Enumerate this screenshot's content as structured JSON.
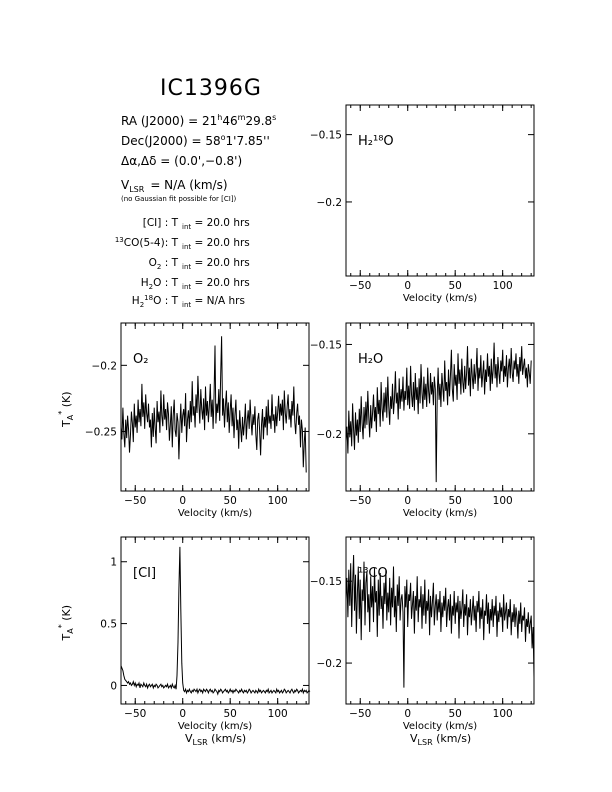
{
  "header": {
    "source": "IC1396G",
    "ra_label": "RA (J2000)  =  21",
    "ra_h": "h",
    "ra_mid": "46",
    "ra_m": "m",
    "ra_sec": "29.8",
    "ra_s": "s",
    "dec_label": "Dec(J2000)  =  58",
    "dec_deg": "o",
    "dec_rest": "1'7.85''",
    "offset_text": "Δα,Δδ = (0.0',−0.8')",
    "vlsr_pre": "V",
    "vlsr_sub": "LSR",
    "vlsr_post": "= N/A  (km/s)",
    "vlsr_note": "(no Gaussian fit possible for [CI])",
    "tint": [
      {
        "pre": "",
        "sup": "",
        "name": "[CI] : T",
        "sub": "int",
        "post": "= 20.0 hrs"
      },
      {
        "pre": "",
        "sup": "13",
        "name": "CO(5-4): T",
        "sub": "int",
        "post": "= 20.0 hrs"
      },
      {
        "pre": "",
        "sup": "",
        "name": "O",
        "sub2": "2",
        "name2": " : T",
        "sub": "int",
        "post": "= 20.0 hrs"
      },
      {
        "pre": "",
        "sup": "",
        "name": "H",
        "sub2": "2",
        "name2": "O : T",
        "sub": "int",
        "post": "= 20.0 hrs"
      },
      {
        "pre": "",
        "sup": "",
        "name": "H",
        "sub2": "2",
        "sup2": "18",
        "name2": "O : T",
        "sub": "int",
        "post": "= N/A  hrs"
      }
    ]
  },
  "axis_labels": {
    "velocity": "Velocity (km/s)",
    "vlsr": "V",
    "vlsr_sub": "LSR",
    "vlsr_unit": "(km/s)",
    "ta": "T",
    "ta_sub": "A",
    "ta_sup": "*",
    "ta_unit": "(K)"
  },
  "chart_data": [
    {
      "id": "h218o",
      "type": "line",
      "label": "H₂¹⁸O",
      "xlim": [
        -65,
        133
      ],
      "ylim": [
        -0.255,
        -0.128
      ],
      "xticks": [
        -50,
        0,
        50,
        100
      ],
      "yticks": [
        -0.15,
        -0.2
      ],
      "ytick_labels": [
        "−0.15",
        "−0.2"
      ],
      "series": []
    },
    {
      "id": "o2",
      "type": "line",
      "label": "O₂",
      "xlim": [
        -65,
        133
      ],
      "ylim": [
        -0.295,
        -0.168
      ],
      "xticks": [
        -50,
        0,
        50,
        100
      ],
      "yticks": [
        -0.2,
        -0.25
      ],
      "ytick_labels": [
        "−0.2",
        "−0.25"
      ],
      "series": [
        {
          "x_start": -65,
          "x_step": 1.0,
          "y": [
            -0.247,
            -0.256,
            -0.232,
            -0.251,
            -0.262,
            -0.241,
            -0.255,
            -0.238,
            -0.249,
            -0.266,
            -0.252,
            -0.235,
            -0.244,
            -0.258,
            -0.229,
            -0.247,
            -0.238,
            -0.251,
            -0.226,
            -0.243,
            -0.233,
            -0.246,
            -0.214,
            -0.239,
            -0.228,
            -0.248,
            -0.222,
            -0.236,
            -0.243,
            -0.229,
            -0.247,
            -0.241,
            -0.262,
            -0.236,
            -0.254,
            -0.232,
            -0.248,
            -0.259,
            -0.227,
            -0.243,
            -0.235,
            -0.251,
            -0.219,
            -0.238,
            -0.246,
            -0.222,
            -0.241,
            -0.233,
            -0.249,
            -0.228,
            -0.237,
            -0.257,
            -0.244,
            -0.231,
            -0.262,
            -0.238,
            -0.226,
            -0.249,
            -0.254,
            -0.236,
            -0.243,
            -0.271,
            -0.246,
            -0.229,
            -0.251,
            -0.238,
            -0.233,
            -0.246,
            -0.221,
            -0.258,
            -0.241,
            -0.234,
            -0.248,
            -0.227,
            -0.243,
            -0.212,
            -0.238,
            -0.231,
            -0.247,
            -0.222,
            -0.236,
            -0.208,
            -0.229,
            -0.244,
            -0.218,
            -0.233,
            -0.241,
            -0.225,
            -0.249,
            -0.216,
            -0.238,
            -0.227,
            -0.243,
            -0.231,
            -0.214,
            -0.239,
            -0.226,
            -0.248,
            -0.221,
            -0.185,
            -0.244,
            -0.229,
            -0.236,
            -0.218,
            -0.242,
            -0.207,
            -0.178,
            -0.238,
            -0.225,
            -0.247,
            -0.231,
            -0.219,
            -0.243,
            -0.228,
            -0.251,
            -0.234,
            -0.222,
            -0.246,
            -0.232,
            -0.255,
            -0.238,
            -0.226,
            -0.249,
            -0.241,
            -0.263,
            -0.234,
            -0.247,
            -0.258,
            -0.239,
            -0.253,
            -0.244,
            -0.229,
            -0.256,
            -0.241,
            -0.234,
            -0.248,
            -0.226,
            -0.242,
            -0.253,
            -0.237,
            -0.245,
            -0.231,
            -0.252,
            -0.264,
            -0.241,
            -0.236,
            -0.249,
            -0.268,
            -0.245,
            -0.233,
            -0.256,
            -0.239,
            -0.247,
            -0.231,
            -0.253,
            -0.226,
            -0.244,
            -0.238,
            -0.248,
            -0.222,
            -0.242,
            -0.237,
            -0.251,
            -0.231,
            -0.246,
            -0.235,
            -0.223,
            -0.242,
            -0.229,
            -0.238,
            -0.226,
            -0.249,
            -0.219,
            -0.236,
            -0.244,
            -0.231,
            -0.222,
            -0.241,
            -0.233,
            -0.247,
            -0.227,
            -0.238,
            -0.216,
            -0.243,
            -0.252,
            -0.236,
            -0.229,
            -0.245,
            -0.238,
            -0.262,
            -0.241,
            -0.249,
            -0.277,
            -0.258,
            -0.247,
            -0.281
          ]
        }
      ]
    },
    {
      "id": "h2o",
      "type": "line",
      "label": "H₂O",
      "xlim": [
        -65,
        133
      ],
      "ylim": [
        -0.232,
        -0.138
      ],
      "xticks": [
        -50,
        0,
        50,
        100
      ],
      "yticks": [
        -0.15,
        -0.2
      ],
      "ytick_labels": [
        "−0.15",
        "−0.2"
      ],
      "series": [
        {
          "x_start": -65,
          "x_step": 1.0,
          "y": [
            -0.204,
            -0.196,
            -0.211,
            -0.187,
            -0.202,
            -0.193,
            -0.207,
            -0.183,
            -0.198,
            -0.209,
            -0.188,
            -0.201,
            -0.192,
            -0.205,
            -0.186,
            -0.199,
            -0.179,
            -0.194,
            -0.203,
            -0.185,
            -0.197,
            -0.182,
            -0.195,
            -0.176,
            -0.191,
            -0.202,
            -0.184,
            -0.197,
            -0.188,
            -0.178,
            -0.193,
            -0.185,
            -0.199,
            -0.174,
            -0.189,
            -0.181,
            -0.196,
            -0.171,
            -0.186,
            -0.193,
            -0.177,
            -0.188,
            -0.174,
            -0.191,
            -0.168,
            -0.184,
            -0.195,
            -0.179,
            -0.186,
            -0.172,
            -0.189,
            -0.181,
            -0.165,
            -0.183,
            -0.177,
            -0.192,
            -0.169,
            -0.186,
            -0.175,
            -0.182,
            -0.168,
            -0.187,
            -0.176,
            -0.181,
            -0.163,
            -0.184,
            -0.173,
            -0.186,
            -0.162,
            -0.178,
            -0.185,
            -0.171,
            -0.187,
            -0.166,
            -0.181,
            -0.174,
            -0.189,
            -0.169,
            -0.183,
            -0.161,
            -0.177,
            -0.186,
            -0.168,
            -0.181,
            -0.172,
            -0.185,
            -0.163,
            -0.176,
            -0.183,
            -0.166,
            -0.178,
            -0.171,
            -0.184,
            -0.168,
            -0.175,
            -0.227,
            -0.179,
            -0.163,
            -0.181,
            -0.172,
            -0.185,
            -0.166,
            -0.174,
            -0.182,
            -0.159,
            -0.176,
            -0.171,
            -0.184,
            -0.164,
            -0.179,
            -0.168,
            -0.153,
            -0.175,
            -0.182,
            -0.161,
            -0.173,
            -0.167,
            -0.181,
            -0.155,
            -0.172,
            -0.164,
            -0.178,
            -0.158,
            -0.171,
            -0.177,
            -0.162,
            -0.175,
            -0.166,
            -0.151,
            -0.173,
            -0.163,
            -0.179,
            -0.158,
            -0.168,
            -0.175,
            -0.161,
            -0.172,
            -0.165,
            -0.152,
            -0.176,
            -0.163,
            -0.169,
            -0.156,
            -0.174,
            -0.167,
            -0.159,
            -0.178,
            -0.164,
            -0.171,
            -0.155,
            -0.168,
            -0.162,
            -0.176,
            -0.158,
            -0.172,
            -0.164,
            -0.149,
            -0.169,
            -0.161,
            -0.174,
            -0.157,
            -0.166,
            -0.172,
            -0.159,
            -0.165,
            -0.153,
            -0.171,
            -0.162,
            -0.168,
            -0.156,
            -0.174,
            -0.163,
            -0.158,
            -0.169,
            -0.152,
            -0.166,
            -0.171,
            -0.159,
            -0.164,
            -0.155,
            -0.168,
            -0.161,
            -0.172,
            -0.157,
            -0.165,
            -0.151,
            -0.167,
            -0.162,
            -0.158,
            -0.169,
            -0.163,
            -0.174,
            -0.161,
            -0.166,
            -0.172,
            -0.159
          ]
        }
      ]
    },
    {
      "id": "ci",
      "type": "line",
      "label": "[CI]",
      "xlim": [
        -65,
        133
      ],
      "ylim": [
        -0.15,
        1.2
      ],
      "xticks": [
        -50,
        0,
        50,
        100
      ],
      "yticks": [
        0,
        0.5,
        1
      ],
      "ytick_labels": [
        "0",
        "0.5",
        "1"
      ],
      "series": [
        {
          "x_start": -65,
          "x_step": 1.0,
          "y": [
            0.16,
            0.14,
            0.12,
            0.08,
            0.05,
            0.04,
            0.03,
            0.02,
            0.03,
            0.01,
            0.02,
            0.0,
            0.01,
            0.03,
            0.0,
            0.02,
            -0.01,
            0.01,
            0.0,
            0.02,
            -0.02,
            0.01,
            0.0,
            -0.01,
            0.02,
            0.0,
            -0.01,
            0.01,
            -0.02,
            0.0,
            0.01,
            -0.01,
            0.0,
            0.01,
            -0.02,
            0.0,
            -0.01,
            0.01,
            0.0,
            -0.02,
            -0.01,
            0.0,
            0.01,
            -0.01,
            0.0,
            -0.02,
            -0.01,
            0.0,
            -0.01,
            0.01,
            -0.02,
            -0.01,
            0.0,
            -0.02,
            0.01,
            -0.01,
            -0.02,
            0.0,
            -0.03,
            0.08,
            0.35,
            0.78,
            1.12,
            0.62,
            0.18,
            0.02,
            -0.04,
            -0.05,
            -0.03,
            -0.06,
            -0.04,
            -0.05,
            -0.03,
            -0.05,
            -0.06,
            -0.04,
            -0.05,
            -0.03,
            -0.04,
            -0.05,
            -0.03,
            -0.06,
            -0.04,
            -0.03,
            -0.05,
            -0.04,
            -0.06,
            -0.03,
            -0.04,
            -0.05,
            -0.03,
            -0.04,
            -0.06,
            -0.04,
            -0.03,
            -0.05,
            -0.04,
            -0.06,
            -0.05,
            -0.03,
            -0.04,
            -0.05,
            -0.07,
            -0.04,
            -0.05,
            -0.03,
            -0.04,
            -0.06,
            -0.05,
            -0.04,
            -0.03,
            -0.05,
            -0.04,
            -0.06,
            -0.05,
            -0.03,
            -0.05,
            -0.04,
            -0.06,
            -0.04,
            -0.05,
            -0.03,
            -0.04,
            -0.05,
            -0.06,
            -0.04,
            -0.05,
            -0.03,
            -0.05,
            -0.06,
            -0.04,
            -0.05,
            -0.04,
            -0.06,
            -0.05,
            -0.03,
            -0.04,
            -0.06,
            -0.05,
            -0.04,
            -0.05,
            -0.06,
            -0.04,
            -0.05,
            -0.06,
            -0.03,
            -0.05,
            -0.04,
            -0.06,
            -0.05,
            -0.04,
            -0.05,
            -0.06,
            -0.04,
            -0.05,
            -0.03,
            -0.06,
            -0.05,
            -0.04,
            -0.06,
            -0.05,
            -0.04,
            -0.05,
            -0.06,
            -0.03,
            -0.05,
            -0.04,
            -0.06,
            -0.05,
            -0.04,
            -0.06,
            -0.05,
            -0.03,
            -0.04,
            -0.06,
            -0.05,
            -0.04,
            -0.05,
            -0.06,
            -0.04,
            -0.03,
            -0.05,
            -0.06,
            -0.04,
            -0.05,
            -0.03,
            -0.04,
            -0.06,
            -0.05,
            -0.04,
            -0.05,
            -0.03,
            -0.06,
            -0.04,
            -0.05,
            -0.04,
            -0.06,
            -0.05,
            -0.04,
            -0.05
          ]
        }
      ]
    },
    {
      "id": "co13",
      "type": "line",
      "label": "¹³CO",
      "xlim": [
        -65,
        133
      ],
      "ylim": [
        -0.225,
        -0.123
      ],
      "xticks": [
        -50,
        0,
        50,
        100
      ],
      "yticks": [
        -0.15,
        -0.2
      ],
      "ytick_labels": [
        "−0.15",
        "−0.2"
      ],
      "series": [
        {
          "x_start": -65,
          "x_step": 1.0,
          "y": [
            -0.161,
            -0.148,
            -0.172,
            -0.143,
            -0.165,
            -0.139,
            -0.178,
            -0.152,
            -0.134,
            -0.168,
            -0.146,
            -0.182,
            -0.157,
            -0.141,
            -0.173,
            -0.149,
            -0.186,
            -0.155,
            -0.162,
            -0.138,
            -0.177,
            -0.151,
            -0.144,
            -0.169,
            -0.158,
            -0.181,
            -0.147,
            -0.166,
            -0.153,
            -0.175,
            -0.142,
            -0.163,
            -0.156,
            -0.184,
            -0.149,
            -0.171,
            -0.145,
            -0.167,
            -0.159,
            -0.179,
            -0.151,
            -0.164,
            -0.143,
            -0.174,
            -0.157,
            -0.169,
            -0.148,
            -0.177,
            -0.154,
            -0.166,
            -0.141,
            -0.172,
            -0.159,
            -0.181,
            -0.152,
            -0.165,
            -0.147,
            -0.174,
            -0.161,
            -0.158,
            -0.169,
            -0.215,
            -0.153,
            -0.166,
            -0.149,
            -0.178,
            -0.158,
            -0.162,
            -0.151,
            -0.173,
            -0.164,
            -0.156,
            -0.182,
            -0.159,
            -0.168,
            -0.147,
            -0.175,
            -0.161,
            -0.166,
            -0.153,
            -0.179,
            -0.158,
            -0.171,
            -0.149,
            -0.176,
            -0.162,
            -0.168,
            -0.155,
            -0.183,
            -0.159,
            -0.172,
            -0.163,
            -0.151,
            -0.177,
            -0.165,
            -0.158,
            -0.174,
            -0.161,
            -0.169,
            -0.156,
            -0.181,
            -0.163,
            -0.172,
            -0.159,
            -0.168,
            -0.154,
            -0.178,
            -0.166,
            -0.161,
            -0.174,
            -0.158,
            -0.182,
            -0.165,
            -0.171,
            -0.156,
            -0.176,
            -0.163,
            -0.169,
            -0.159,
            -0.185,
            -0.162,
            -0.173,
            -0.167,
            -0.155,
            -0.178,
            -0.164,
            -0.171,
            -0.158,
            -0.183,
            -0.166,
            -0.172,
            -0.161,
            -0.177,
            -0.168,
            -0.159,
            -0.174,
            -0.165,
            -0.181,
            -0.162,
            -0.169,
            -0.156,
            -0.179,
            -0.166,
            -0.173,
            -0.161,
            -0.186,
            -0.168,
            -0.171,
            -0.158,
            -0.176,
            -0.163,
            -0.182,
            -0.167,
            -0.174,
            -0.161,
            -0.178,
            -0.165,
            -0.171,
            -0.159,
            -0.184,
            -0.168,
            -0.175,
            -0.163,
            -0.172,
            -0.166,
            -0.181,
            -0.158,
            -0.174,
            -0.169,
            -0.163,
            -0.179,
            -0.167,
            -0.172,
            -0.161,
            -0.183,
            -0.169,
            -0.175,
            -0.164,
            -0.178,
            -0.166,
            -0.172,
            -0.185,
            -0.168,
            -0.176,
            -0.163,
            -0.181,
            -0.171,
            -0.174,
            -0.166,
            -0.187,
            -0.173,
            -0.178,
            -0.169,
            -0.182,
            -0.176,
            -0.171,
            -0.191,
            -0.178,
            -0.209
          ]
        }
      ]
    }
  ]
}
